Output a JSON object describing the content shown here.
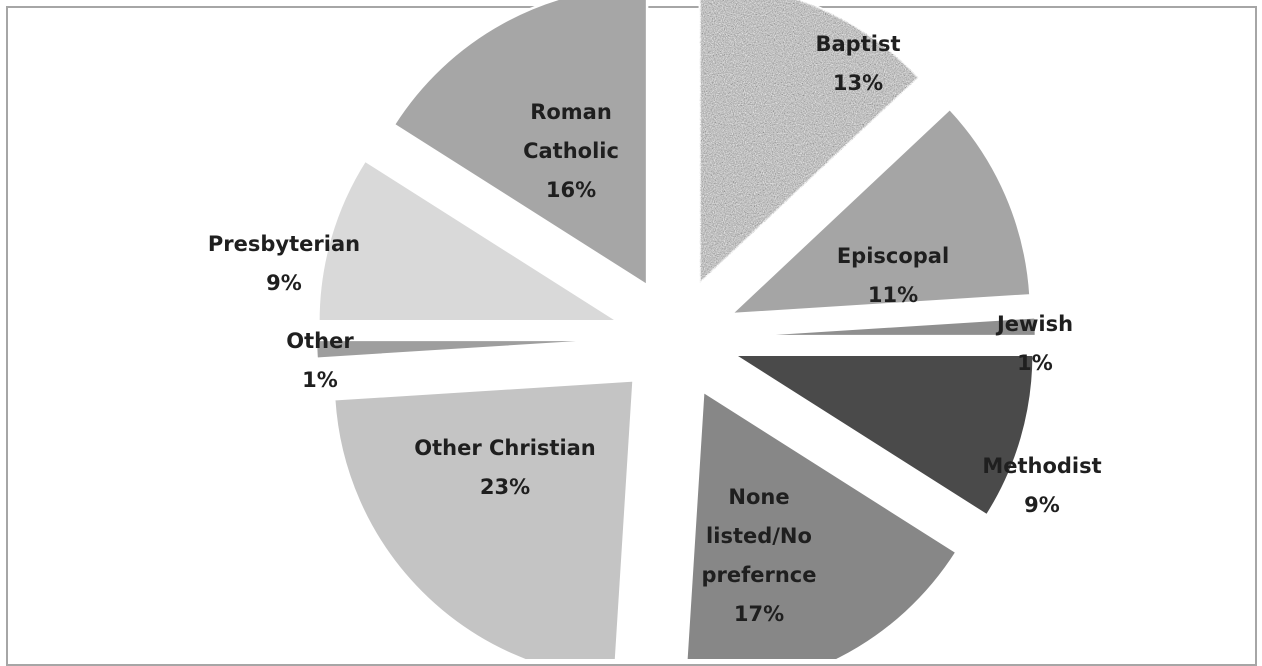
{
  "chart_data": {
    "type": "pie",
    "exploded": true,
    "slices": [
      {
        "name": "Baptist",
        "value": 13,
        "label_lines": [
          "Baptist",
          "13%"
        ],
        "color": "#b0b0b0",
        "pattern": "speckle"
      },
      {
        "name": "Episcopal",
        "value": 11,
        "label_lines": [
          "Episcopal",
          "11%"
        ],
        "color": "#a5a5a5"
      },
      {
        "name": "Jewish",
        "value": 1,
        "label_lines": [
          "Jewish",
          "1%"
        ],
        "color": "#8f8f8f"
      },
      {
        "name": "Methodist",
        "value": 9,
        "label_lines": [
          "Methodist",
          "9%"
        ],
        "color": "#4a4a4a"
      },
      {
        "name": "None listed/No prefernce",
        "value": 17,
        "label_lines": [
          "None",
          "listed/No",
          "prefernce",
          "17%"
        ],
        "color": "#878787"
      },
      {
        "name": "Other Christian",
        "value": 23,
        "label_lines": [
          "Other Christian",
          "23%"
        ],
        "color": "#c4c4c4"
      },
      {
        "name": "Other",
        "value": 1,
        "label_lines": [
          "Other",
          "1%"
        ],
        "color": "#9e9e9e"
      },
      {
        "name": "Presbyterian",
        "value": 9,
        "label_lines": [
          "Presbyterian",
          "9%"
        ],
        "color": "#d9d9d9"
      },
      {
        "name": "Roman Catholic",
        "value": 16,
        "label_lines": [
          "Roman",
          "Catholic",
          "16%"
        ],
        "color": "#a6a6a6"
      }
    ]
  }
}
